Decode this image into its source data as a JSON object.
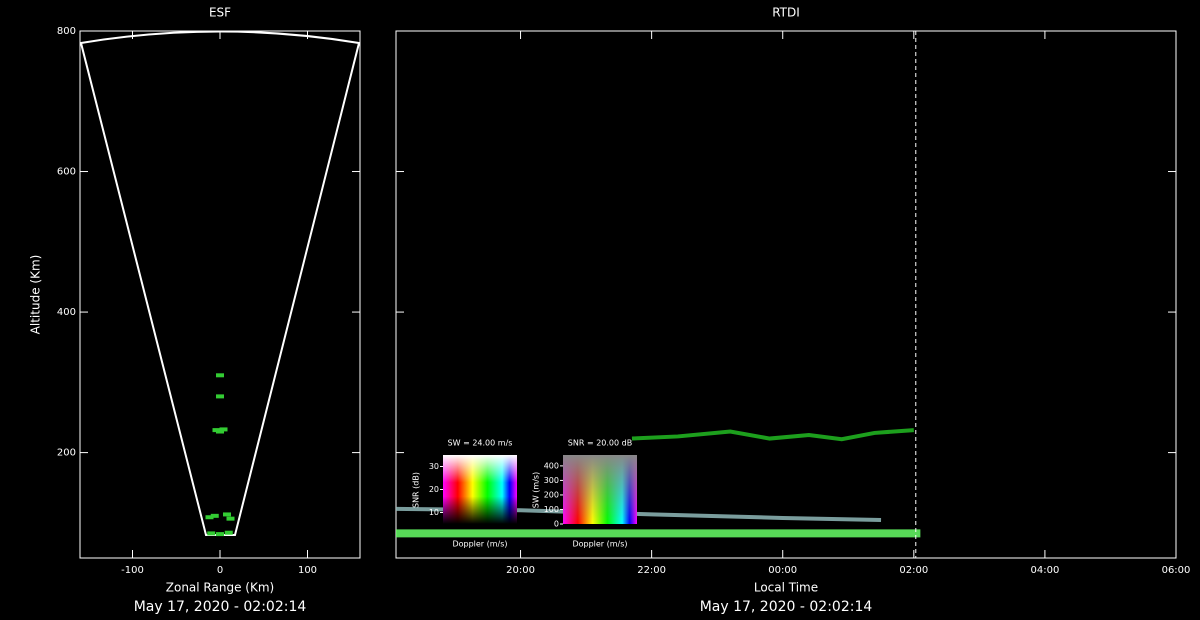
{
  "chart_data": [
    {
      "type": "scatter",
      "title": "ESF",
      "xlabel": "Zonal Range (Km)",
      "ylabel": "Altitude (Km)",
      "subtitle": "May 17, 2020 - 02:02:14",
      "xlim": [
        -160,
        160
      ],
      "ylim": [
        50,
        800
      ],
      "xticks": [
        -100,
        0,
        100
      ],
      "yticks": [
        200,
        400,
        600,
        800
      ],
      "series": [
        {
          "name": "echoes",
          "color": "#33cc33",
          "x": [
            -4,
            0,
            4,
            -12,
            -6,
            8,
            12,
            -10,
            0,
            10,
            0,
            0
          ],
          "y": [
            232,
            230,
            233,
            108,
            110,
            112,
            106,
            85,
            84,
            86,
            310,
            280
          ]
        }
      ]
    },
    {
      "type": "rtdi",
      "title": "RTDI",
      "xlabel": "Local Time",
      "subtitle": "May 17, 2020 - 02:02:14",
      "xlim": [
        18.1,
        30
      ],
      "ylim": [
        50,
        800
      ],
      "xticks": [
        {
          "value": 20,
          "label": "20:00"
        },
        {
          "value": 22,
          "label": "22:00"
        },
        {
          "value": 24,
          "label": "00:00"
        },
        {
          "value": 26,
          "label": "02:00"
        },
        {
          "value": 28,
          "label": "04:00"
        },
        {
          "value": 30,
          "label": "06:00"
        }
      ],
      "yticks": [
        200,
        400,
        600,
        800
      ],
      "current_time": 26.03,
      "series": [
        {
          "name": "layer",
          "color": "#22bb22",
          "x": [
            21.7,
            22.4,
            23.2,
            23.8,
            24.4,
            24.9,
            25.4,
            26.0
          ],
          "y": [
            220,
            223,
            230,
            220,
            225,
            219,
            228,
            232
          ]
        },
        {
          "name": "trail",
          "color": "#8fb8b8",
          "x": [
            18.1,
            20,
            22,
            24,
            25.5
          ],
          "y": [
            120,
            118,
            112,
            107,
            104
          ]
        },
        {
          "name": "band",
          "color": "#66ff66",
          "x": [
            18.1,
            26.1
          ],
          "y": [
            85,
            85
          ]
        }
      ],
      "insets": [
        {
          "title": "SW = 24.00 m/s",
          "ylabel": "SNR (dB)",
          "xlabel": "Doppler (m/s)",
          "ylim": [
            5,
            35
          ],
          "yticks": [
            10,
            20,
            30
          ]
        },
        {
          "title": "SNR = 20.00 dB",
          "ylabel": "SW (m/s)",
          "xlabel": "Doppler (m/s)",
          "ylim": [
            0,
            475
          ],
          "yticks": [
            0,
            100,
            200,
            300,
            400
          ]
        }
      ]
    }
  ]
}
